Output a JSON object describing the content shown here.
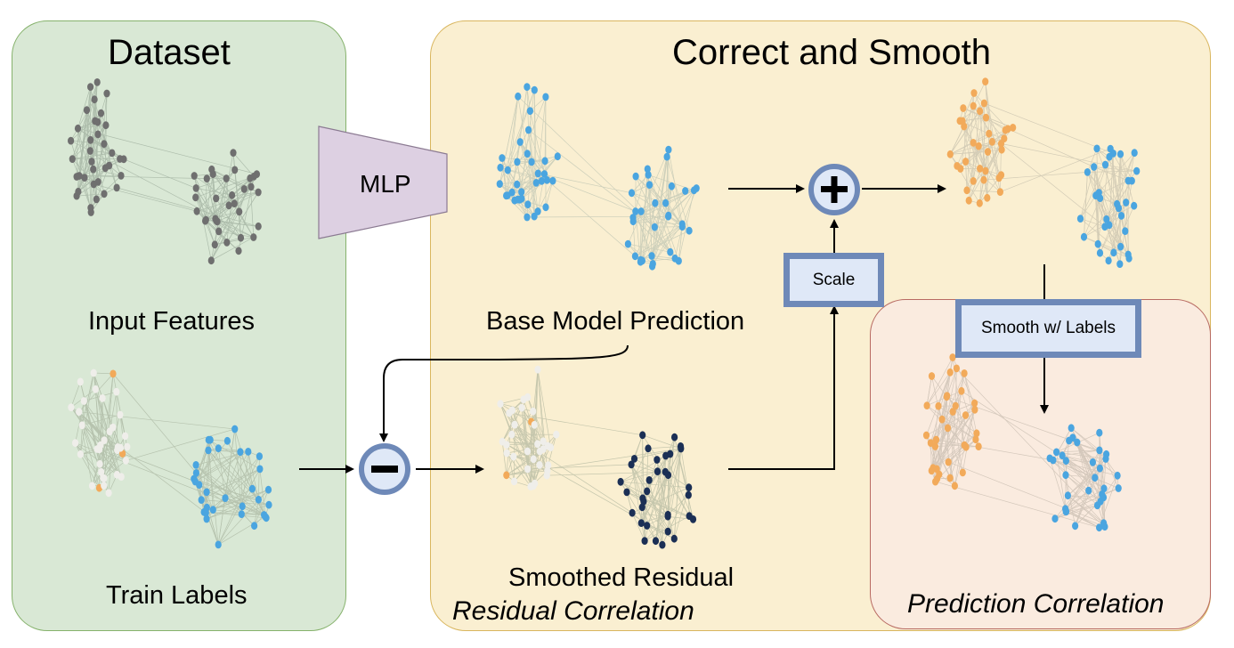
{
  "panels": {
    "dataset_title": "Dataset",
    "cs_title": "Correct and Smooth"
  },
  "labels": {
    "input_features": "Input Features",
    "train_labels": "Train Labels",
    "base_model_prediction": "Base Model Prediction",
    "smoothed_residual": "Smoothed Residual",
    "residual_correlation": "Residual Correlation",
    "prediction_correlation": "Prediction Correlation"
  },
  "boxes": {
    "mlp": "MLP",
    "scale": "Scale",
    "smooth_with_labels": "Smooth w/ Labels"
  },
  "operators": {
    "plus": "+",
    "minus": "−"
  },
  "colors": {
    "gray_node": "#6f6f6f",
    "blue_node": "#4aa5e0",
    "orange_node": "#f2aa5a",
    "navy_node": "#1b2f55",
    "light_node": "#efeeea",
    "operator_border": "#6e89b8",
    "dataset_bg": "#d9e8d5",
    "cs_bg": "#faefd1",
    "prediction_bg": "#faebdf",
    "mlp_fill": "#ddd0e2"
  }
}
